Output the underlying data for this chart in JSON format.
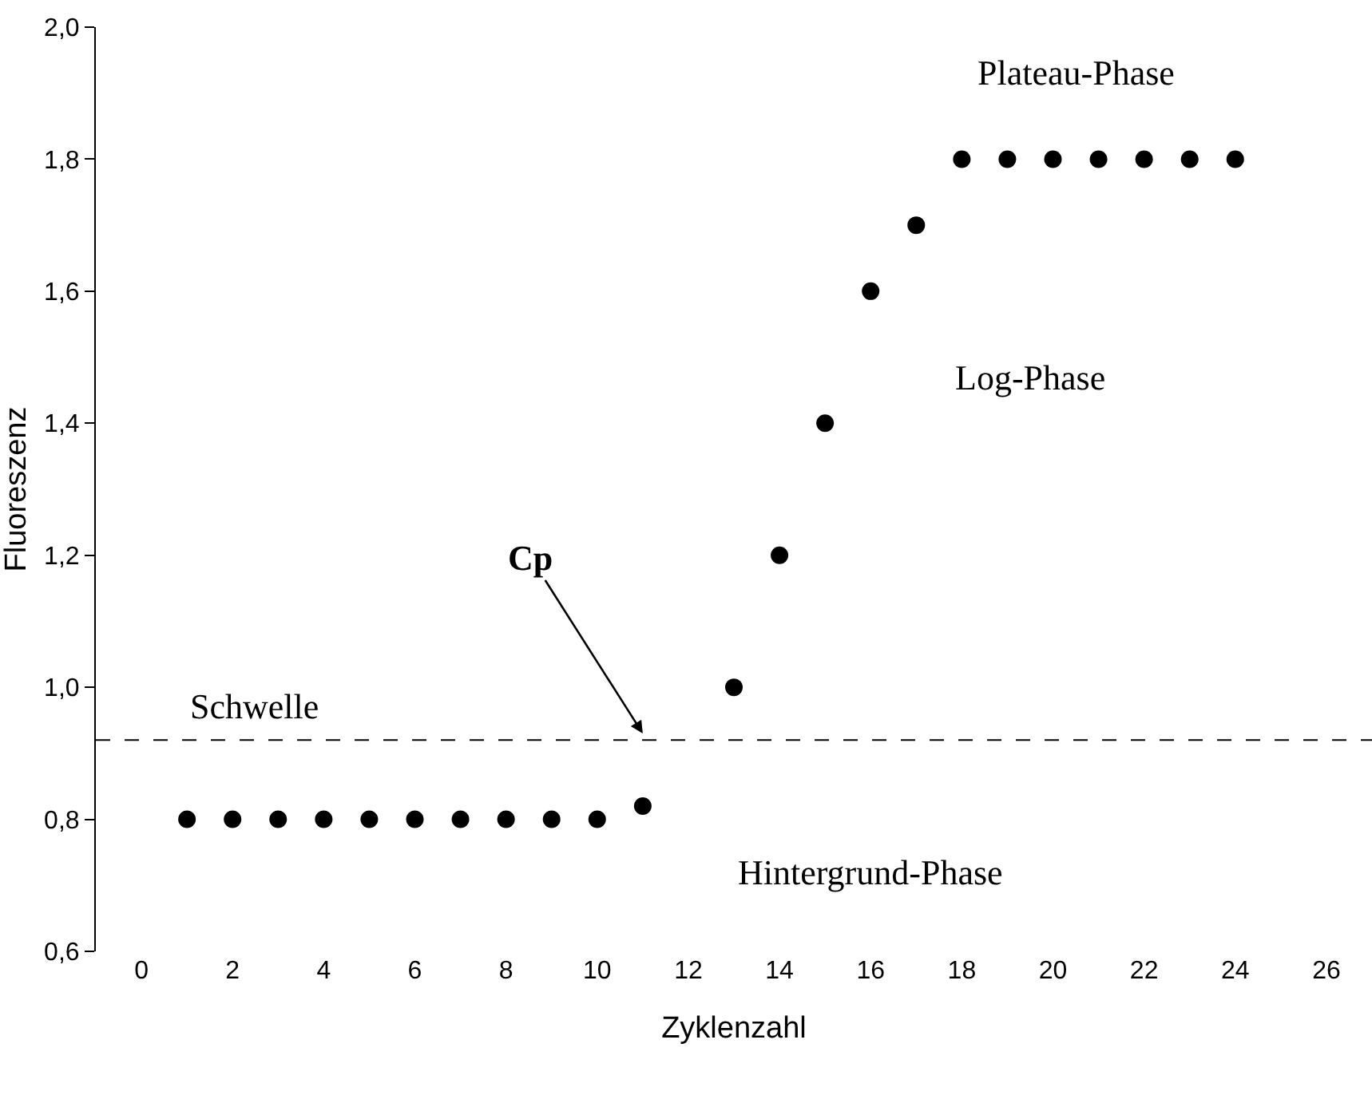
{
  "chart_data": {
    "type": "scatter",
    "xlabel": "Zyklenzahl",
    "ylabel": "Fluoreszenz",
    "x": [
      1,
      2,
      3,
      4,
      5,
      6,
      7,
      8,
      9,
      10,
      11,
      13,
      14,
      15,
      16,
      17,
      18,
      19,
      20,
      21,
      22,
      23,
      24
    ],
    "series": [
      {
        "color": "#000000",
        "values": [
          0.8,
          0.8,
          0.8,
          0.8,
          0.8,
          0.8,
          0.8,
          0.8,
          0.8,
          0.8,
          0.82,
          1.0,
          1.2,
          1.4,
          1.6,
          1.7,
          1.8,
          1.8,
          1.8,
          1.8,
          1.8,
          1.8,
          1.8
        ]
      }
    ],
    "marker": "circle",
    "xlim": [
      -1,
      27
    ],
    "xticks": [
      0,
      2,
      4,
      6,
      8,
      10,
      12,
      14,
      16,
      18,
      20,
      22,
      24,
      26
    ],
    "ylim": [
      0.6,
      2.0
    ],
    "yticks": [
      {
        "value": 0.6,
        "label": "0,6"
      },
      {
        "value": 0.8,
        "label": "0,8"
      },
      {
        "value": 1.0,
        "label": "1,0"
      },
      {
        "value": 1.2,
        "label": "1,2"
      },
      {
        "value": 1.4,
        "label": "1,4"
      },
      {
        "value": 1.6,
        "label": "1,6"
      },
      {
        "value": 1.8,
        "label": "1,8"
      },
      {
        "value": 2.0,
        "label": "2,0"
      }
    ],
    "ref_lines": [
      {
        "axis": "y",
        "value": 0.92,
        "color": "#000000",
        "line_style": "dashed"
      }
    ],
    "annotations": [
      "Plateau-Phase",
      "Log-Phase",
      "Schwelle",
      "Hintergrund-Phase",
      {
        "text": "Cp",
        "x": 11,
        "y": 0.93
      }
    ]
  }
}
